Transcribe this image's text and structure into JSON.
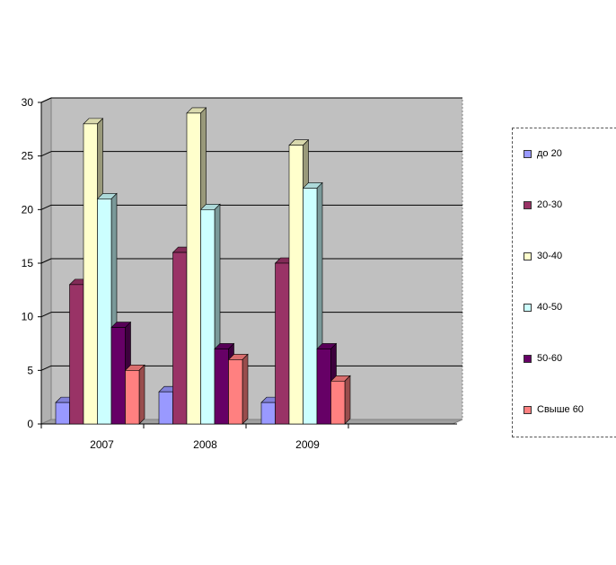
{
  "chart_data": {
    "type": "bar",
    "categories": [
      "2007",
      "2008",
      "2009"
    ],
    "series": [
      {
        "name": "до 20",
        "values": [
          2,
          3,
          2
        ],
        "color": "#9999ff"
      },
      {
        "name": "20-30",
        "values": [
          13,
          16,
          15
        ],
        "color": "#993366"
      },
      {
        "name": "30-40",
        "values": [
          28,
          29,
          26
        ],
        "color": "#ffffcc"
      },
      {
        "name": "40-50",
        "values": [
          21,
          20,
          22
        ],
        "color": "#ccffff"
      },
      {
        "name": "50-60",
        "values": [
          9,
          7,
          7
        ],
        "color": "#660066"
      },
      {
        "name": "Свыше 60",
        "values": [
          5,
          6,
          4
        ],
        "color": "#ff8080"
      }
    ],
    "yticks": [
      "0",
      "5",
      "10",
      "15",
      "20",
      "25",
      "30"
    ],
    "ylim": [
      0,
      30
    ],
    "grid": true,
    "legend": "right",
    "title": "",
    "xlabel": "",
    "ylabel": ""
  },
  "colors": {
    "plot_background": "#c0c0c0",
    "floor": "#a0a0a0"
  }
}
